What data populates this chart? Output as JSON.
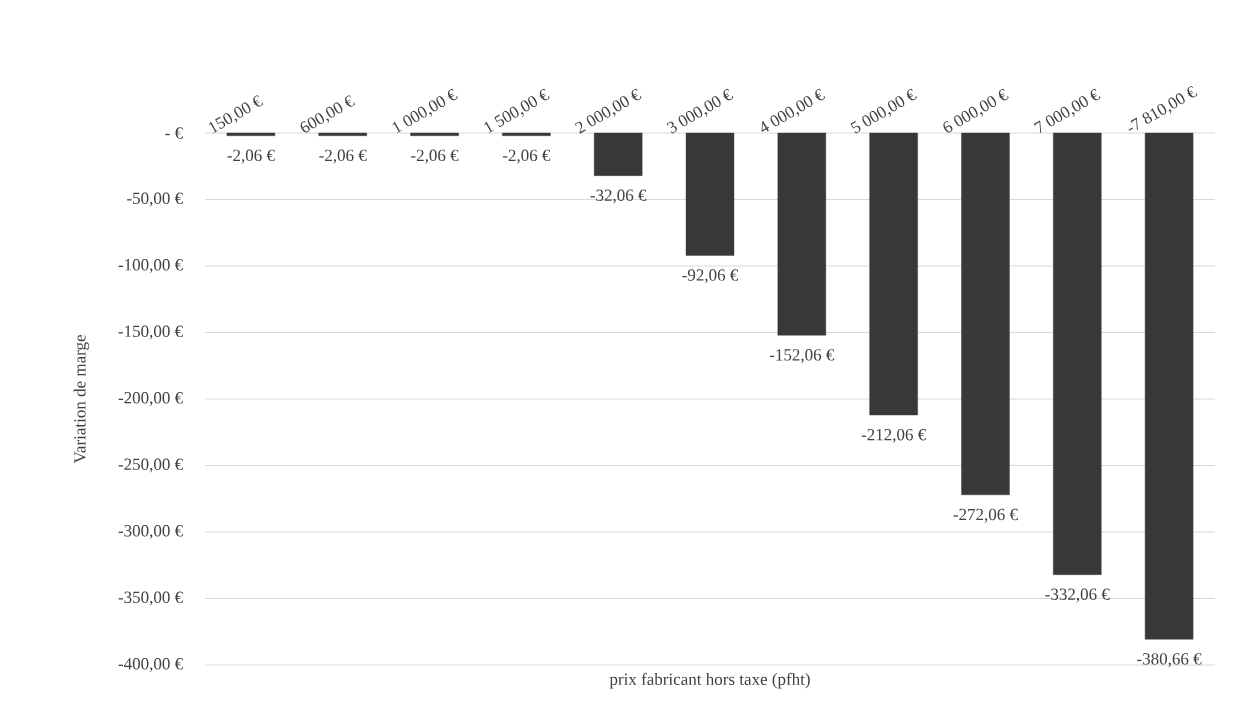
{
  "chart_data": {
    "type": "bar",
    "xlabel": "prix fabricant hors taxe (pfht)",
    "ylabel": "Variation de marge",
    "categories": [
      "150,00 €",
      "600,00 €",
      "1 000,00 €",
      "1 500,00 €",
      "2 000,00 €",
      "3 000,00 €",
      "4 000,00 €",
      "5 000,00 €",
      "6 000,00 €",
      "7 000,00 €",
      "-7 810,00 €"
    ],
    "values": [
      -2.06,
      -2.06,
      -2.06,
      -2.06,
      -32.06,
      -92.06,
      -152.06,
      -212.06,
      -272.06,
      -332.06,
      -380.66
    ],
    "value_labels": [
      "-2,06 €",
      "-2,06 €",
      "-2,06 €",
      "-2,06 €",
      "-32,06 €",
      "-92,06 €",
      "-152,06 €",
      "-212,06 €",
      "-272,06 €",
      "-332,06 €",
      "-380,66 €"
    ],
    "color": "#3a3836",
    "ylim": [
      -400,
      0
    ],
    "yticks": [
      {
        "value": 0,
        "label": "-   €"
      },
      {
        "value": -50,
        "label": "-50,00 €"
      },
      {
        "value": -100,
        "label": "-100,00 €"
      },
      {
        "value": -150,
        "label": "-150,00 €"
      },
      {
        "value": -200,
        "label": "-200,00 €"
      },
      {
        "value": -250,
        "label": "-250,00 €"
      },
      {
        "value": -300,
        "label": "-300,00 €"
      },
      {
        "value": -350,
        "label": "-350,00 €"
      },
      {
        "value": -400,
        "label": "-400,00 €"
      }
    ],
    "grid": "y"
  }
}
